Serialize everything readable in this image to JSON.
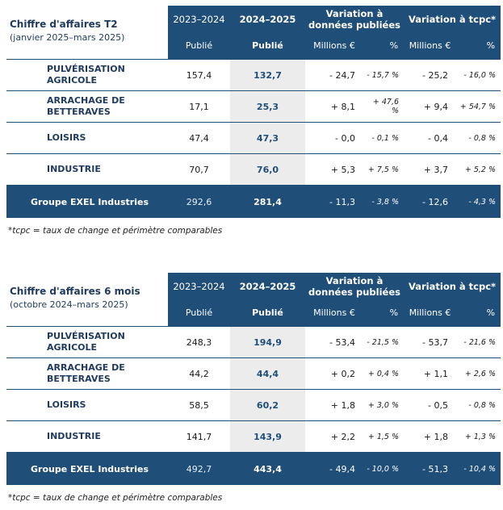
{
  "tables": [
    {
      "title": "Chiffre d'affaires T2",
      "subtitle": "(janvier 2025–mars 2025)",
      "col_prev": "2023–2024",
      "col_curr": "2024–2025",
      "col_var_pub": "Variation à données publiées",
      "col_var_tcpc": "Variation à tcpc*",
      "sub_prev": "Publié",
      "sub_curr": "Publié",
      "sub_m1": "Millions €",
      "sub_p1": "%",
      "sub_m2": "Millions €",
      "sub_p2": "%",
      "rows": [
        {
          "label": "PULVÉRISATION AGRICOLE",
          "prev": "157,4",
          "curr": "132,7",
          "var_m": "- 24,7",
          "var_p": "- 15,7 %",
          "tcpc_m": "- 25,2",
          "tcpc_p": "- 16,0 %"
        },
        {
          "label": "ARRACHAGE DE BETTERAVES",
          "prev": "17,1",
          "curr": "25,3",
          "var_m": "+ 8,1",
          "var_p": "+ 47,6 %",
          "tcpc_m": "+ 9,4",
          "tcpc_p": "+ 54,7 %"
        },
        {
          "label": "LOISIRS",
          "prev": "47,4",
          "curr": "47,3",
          "var_m": "- 0,0",
          "var_p": "- 0,1 %",
          "tcpc_m": "- 0,4",
          "tcpc_p": "- 0,8 %"
        },
        {
          "label": "INDUSTRIE",
          "prev": "70,7",
          "curr": "76,0",
          "var_m": "+ 5,3",
          "var_p": "+ 7,5 %",
          "tcpc_m": "+ 3,7",
          "tcpc_p": "+ 5,2 %"
        }
      ],
      "total": {
        "label": "Groupe EXEL Industries",
        "prev": "292,6",
        "curr": "281,4",
        "var_m": "- 11,3",
        "var_p": "- 3,8 %",
        "tcpc_m": "- 12,6",
        "tcpc_p": "- 4,3 %"
      },
      "note": "*tcpc = taux de change et périmètre comparables"
    },
    {
      "title": "Chiffre d'affaires 6 mois",
      "subtitle": "(octobre 2024–mars 2025)",
      "col_prev": "2023–2024",
      "col_curr": "2024–2025",
      "col_var_pub": "Variation à données publiées",
      "col_var_tcpc": "Variation à tcpc*",
      "sub_prev": "Publié",
      "sub_curr": "Publié",
      "sub_m1": "Millions €",
      "sub_p1": "%",
      "sub_m2": "Millions €",
      "sub_p2": "%",
      "rows": [
        {
          "label": "PULVÉRISATION AGRICOLE",
          "prev": "248,3",
          "curr": "194,9",
          "var_m": "- 53,4",
          "var_p": "- 21,5 %",
          "tcpc_m": "- 53,7",
          "tcpc_p": "- 21,6 %"
        },
        {
          "label": "ARRACHAGE DE BETTERAVES",
          "prev": "44,2",
          "curr": "44,4",
          "var_m": "+ 0,2",
          "var_p": "+ 0,4 %",
          "tcpc_m": "+ 1,1",
          "tcpc_p": "+ 2,6 %"
        },
        {
          "label": "LOISIRS",
          "prev": "58,5",
          "curr": "60,2",
          "var_m": "+ 1,8",
          "var_p": "+ 3,0 %",
          "tcpc_m": "- 0,5",
          "tcpc_p": "- 0,8 %"
        },
        {
          "label": "INDUSTRIE",
          "prev": "141,7",
          "curr": "143,9",
          "var_m": "+ 2,2",
          "var_p": "+ 1,5 %",
          "tcpc_m": "+ 1,8",
          "tcpc_p": "+ 1,3 %"
        }
      ],
      "total": {
        "label": "Groupe EXEL Industries",
        "prev": "492,7",
        "curr": "443,4",
        "var_m": "- 49,4",
        "var_p": "- 10,0 %",
        "tcpc_m": "- 51,3",
        "tcpc_p": "- 10,4 %"
      },
      "note": "*tcpc = taux de change et périmètre comparables"
    }
  ]
}
